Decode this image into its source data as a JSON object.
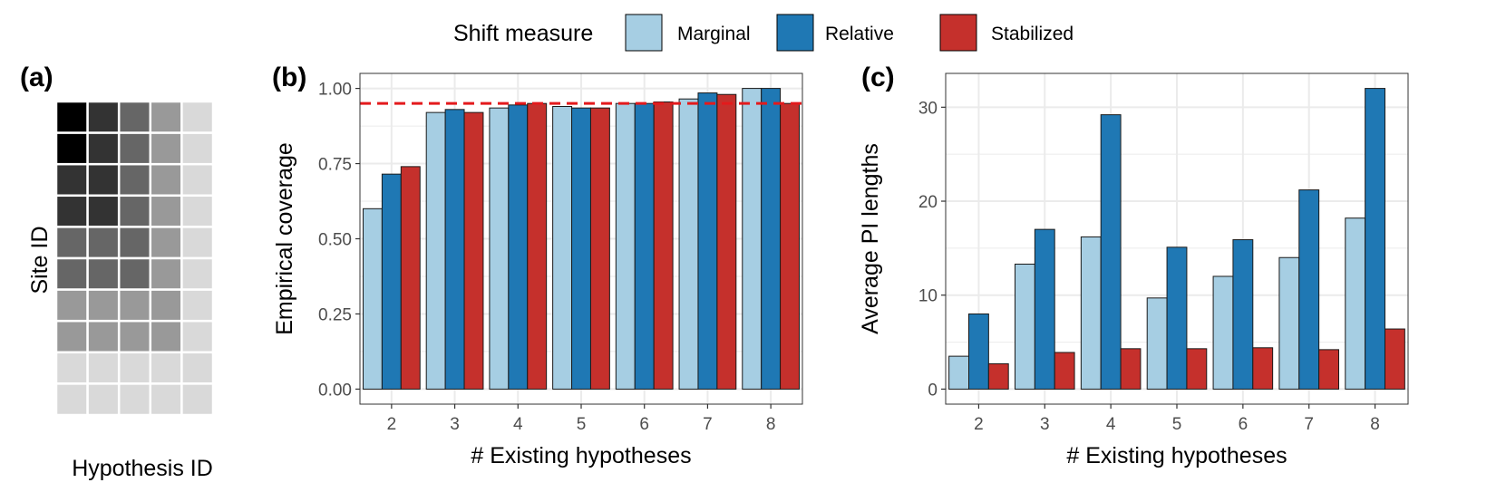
{
  "colors": {
    "marginal": "#a6cee3",
    "relative": "#1f78b4",
    "stabilized": "#c5302c",
    "reference_line": "#e31a1c",
    "grid": "#ebebeb",
    "panel_border": "#333333"
  },
  "legend": {
    "title": "Shift measure",
    "entries": [
      "Marginal",
      "Relative",
      "Stabilized"
    ],
    "placement": "top-center"
  },
  "panel_a": {
    "tag": "(a)",
    "xlabel": "Hypothesis ID",
    "ylabel": "Site ID",
    "gray_levels": [
      [
        0,
        0.2,
        0.4,
        0.6,
        0.85
      ],
      [
        0,
        0.2,
        0.4,
        0.6,
        0.85
      ],
      [
        0.2,
        0.2,
        0.4,
        0.6,
        0.85
      ],
      [
        0.2,
        0.2,
        0.4,
        0.6,
        0.85
      ],
      [
        0.4,
        0.4,
        0.4,
        0.6,
        0.85
      ],
      [
        0.4,
        0.4,
        0.4,
        0.6,
        0.85
      ],
      [
        0.6,
        0.6,
        0.6,
        0.6,
        0.85
      ],
      [
        0.6,
        0.6,
        0.6,
        0.6,
        0.85
      ],
      [
        0.85,
        0.85,
        0.85,
        0.85,
        0.85
      ],
      [
        0.85,
        0.85,
        0.85,
        0.85,
        0.85
      ]
    ]
  },
  "chart_data": [
    {
      "tag": "(b)",
      "type": "bar",
      "xlabel": "# Existing hypotheses",
      "ylabel": "Empirical coverage",
      "categories": [
        "2",
        "3",
        "4",
        "5",
        "6",
        "7",
        "8"
      ],
      "ylim": [
        -0.05,
        1.05
      ],
      "yticks": [
        0,
        0.25,
        0.5,
        0.75,
        1
      ],
      "ytick_labels": [
        "0.00",
        "0.25",
        "0.50",
        "0.75",
        "1.00"
      ],
      "reference_line": 0.95,
      "grid": true,
      "series": [
        {
          "name": "Marginal",
          "values": [
            0.6,
            0.92,
            0.935,
            0.94,
            0.95,
            0.965,
            1.0
          ]
        },
        {
          "name": "Relative",
          "values": [
            0.715,
            0.93,
            0.945,
            0.935,
            0.95,
            0.985,
            1.0
          ]
        },
        {
          "name": "Stabilized",
          "values": [
            0.74,
            0.92,
            0.95,
            0.935,
            0.955,
            0.98,
            0.95
          ]
        }
      ]
    },
    {
      "tag": "(c)",
      "type": "bar",
      "xlabel": "# Existing hypotheses",
      "ylabel": "Average PI lengths",
      "categories": [
        "2",
        "3",
        "4",
        "5",
        "6",
        "7",
        "8"
      ],
      "ylim": [
        -1.6,
        33.6
      ],
      "yticks": [
        0,
        10,
        20,
        30
      ],
      "ytick_labels": [
        "0",
        "10",
        "20",
        "30"
      ],
      "grid": true,
      "series": [
        {
          "name": "Marginal",
          "values": [
            3.5,
            13.3,
            16.2,
            9.7,
            12.0,
            14.0,
            18.2
          ]
        },
        {
          "name": "Relative",
          "values": [
            8.0,
            17.0,
            29.2,
            15.1,
            15.9,
            21.2,
            32.0
          ]
        },
        {
          "name": "Stabilized",
          "values": [
            2.7,
            3.9,
            4.3,
            4.3,
            4.4,
            4.2,
            6.4
          ]
        }
      ]
    }
  ]
}
